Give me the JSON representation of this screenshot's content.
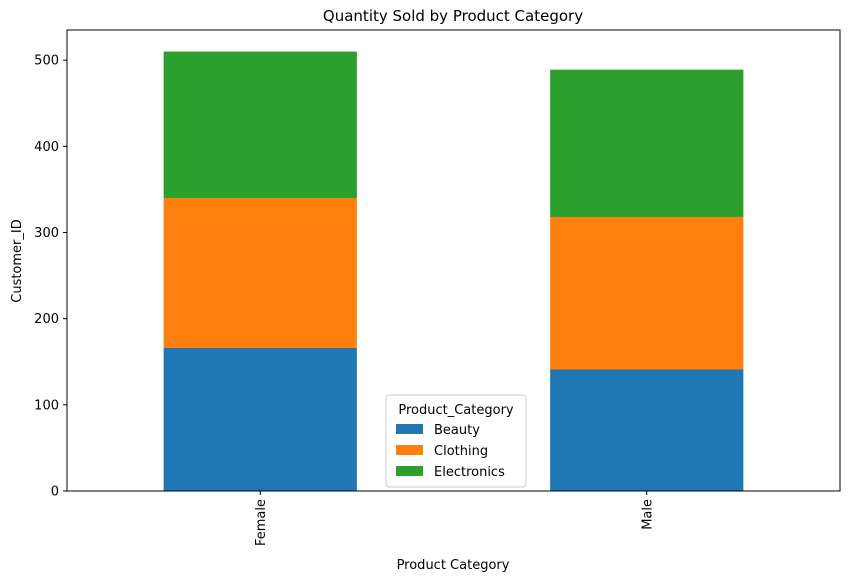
{
  "chart_data": {
    "type": "bar",
    "stacked": true,
    "title": "Quantity Sold by Product Category",
    "xlabel": "Product Category",
    "ylabel": "Customer_ID",
    "categories": [
      "Female",
      "Male"
    ],
    "series": [
      {
        "name": "Beauty",
        "values": [
          166,
          141
        ],
        "color": "#1f77b4"
      },
      {
        "name": "Clothing",
        "values": [
          174,
          177
        ],
        "color": "#ff7f0e"
      },
      {
        "name": "Electronics",
        "values": [
          170,
          171
        ],
        "color": "#2ca02c"
      }
    ],
    "ylim": [
      0,
      535
    ],
    "yticks": [
      0,
      100,
      200,
      300,
      400,
      500
    ],
    "legend": {
      "title": "Product_Category",
      "placement": "lower-center"
    },
    "grid": false
  }
}
